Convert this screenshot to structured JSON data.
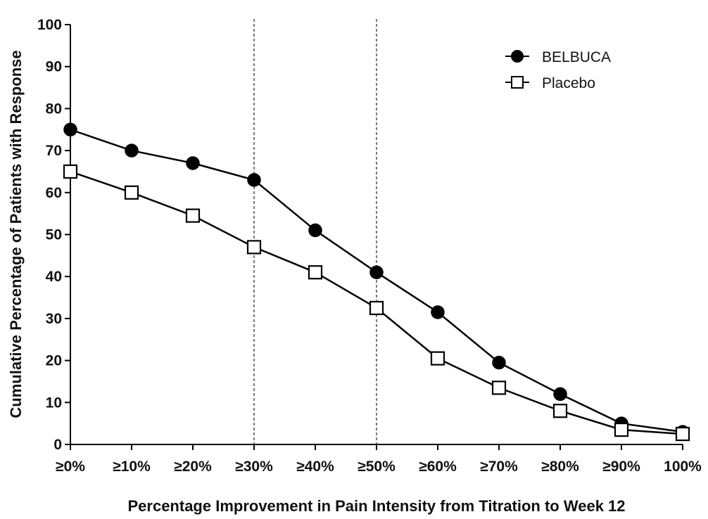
{
  "chart_data": {
    "type": "line",
    "categories": [
      "≥0%",
      "≥10%",
      "≥20%",
      "≥30%",
      "≥40%",
      "≥50%",
      "≥60%",
      "≥70%",
      "≥80%",
      "≥90%",
      "100%"
    ],
    "series": [
      {
        "name": "BELBUCA",
        "marker": "filled-circle",
        "color": "#000000",
        "values": [
          75,
          70,
          67,
          63,
          51,
          41,
          31.5,
          19.5,
          12,
          5,
          3
        ]
      },
      {
        "name": "Placebo",
        "marker": "open-square",
        "color": "#000000",
        "values": [
          65,
          60,
          54.5,
          47,
          41,
          32.5,
          20.5,
          13.5,
          8,
          3.5,
          2.5
        ]
      }
    ],
    "xlabel": "Percentage Improvement in Pain Intensity from Titration to Week 12",
    "ylabel": "Cumulative Percentage of Patients with Response",
    "ylim": [
      0,
      100
    ],
    "yticks": [
      0,
      10,
      20,
      30,
      40,
      50,
      60,
      70,
      80,
      90,
      100
    ],
    "reference_lines": [
      "≥30%",
      "≥50%"
    ],
    "grid": false,
    "legend_position": "top-right"
  }
}
